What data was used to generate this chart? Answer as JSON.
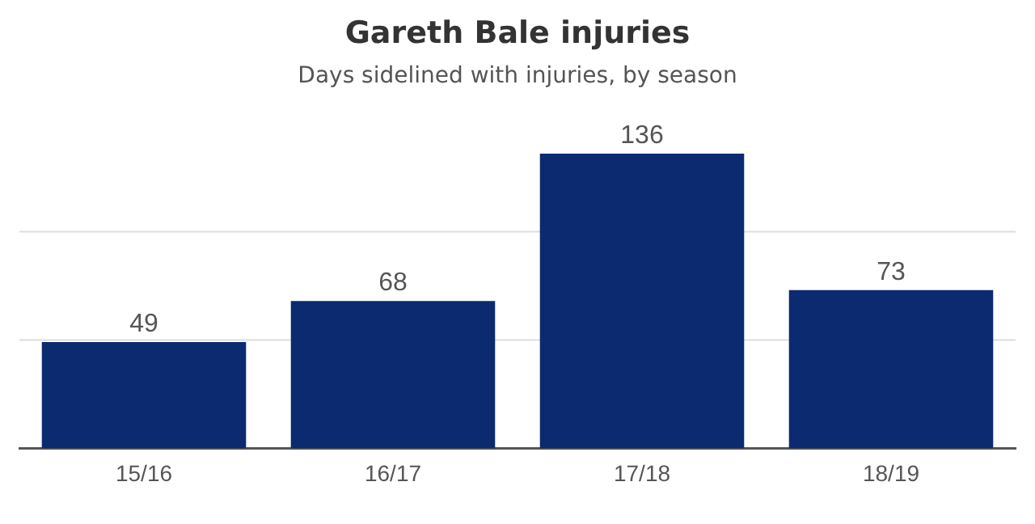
{
  "chart_data": {
    "type": "bar",
    "title": "Gareth Bale injuries",
    "subtitle": "Days sidelined with injuries, by season",
    "categories": [
      "15/16",
      "16/17",
      "17/18",
      "18/19"
    ],
    "values": [
      49,
      68,
      136,
      73
    ],
    "color": "#0b2a6f",
    "ref_lines": [
      {
        "axis": "y",
        "value": 50,
        "color": "#dddddd"
      },
      {
        "axis": "y",
        "value": 100,
        "color": "#dddddd"
      }
    ],
    "tick_labels": "x",
    "data_labels": true
  }
}
